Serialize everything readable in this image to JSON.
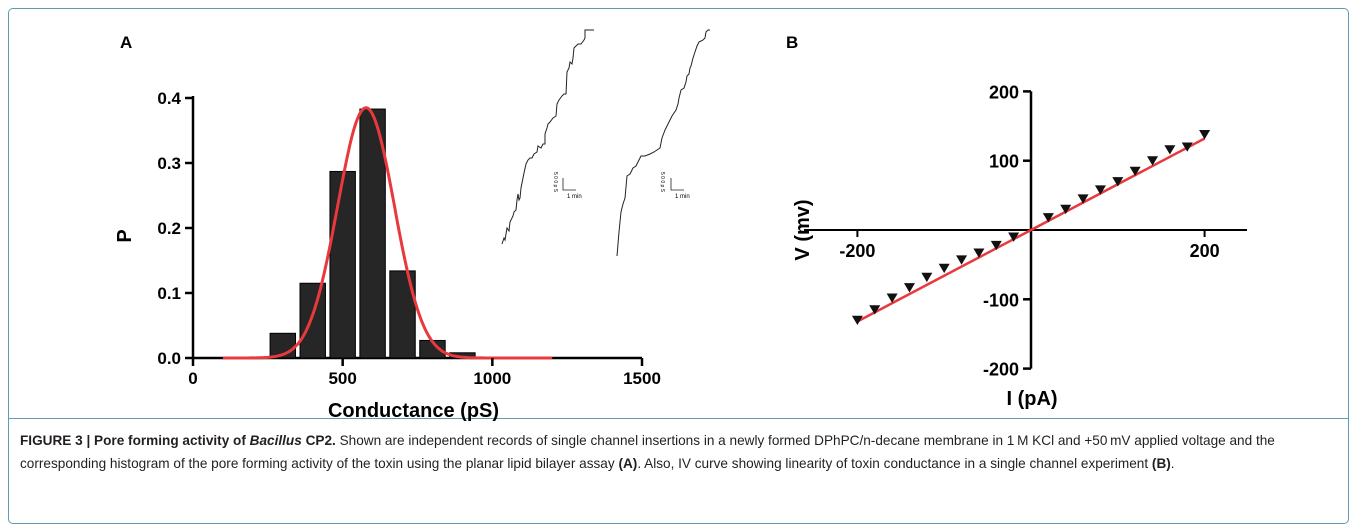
{
  "figure": {
    "caption_label": "FIGURE 3 | Pore forming activity of ",
    "caption_species": "Bacillus",
    "caption_label_end": " CP2.",
    "caption_text": " Shown are independent records of single channel insertions in a newly formed DPhPC/n-decane membrane in 1 M KCl and +50 mV applied voltage and the corresponding histogram of the pore forming activity of the toxin using the planar lipid bilayer assay ",
    "caption_ref_a": "(A)",
    "caption_text2": ". Also, IV curve showing linearity of toxin conductance in a single channel experiment ",
    "caption_ref_b": "(B)",
    "caption_end": "."
  },
  "chart_data": [
    {
      "panel": "A",
      "type": "bar",
      "xlabel": "Conductance (pS)",
      "ylabel": "P",
      "xlim": [
        0,
        1500
      ],
      "ylim": [
        0,
        0.4
      ],
      "xticks": [
        "0",
        "500",
        "1000",
        "1500"
      ],
      "yticks": [
        "0.0",
        "0.1",
        "0.2",
        "0.3",
        "0.4"
      ],
      "categories": [
        300,
        400,
        500,
        600,
        700,
        800,
        900
      ],
      "values": [
        0.038,
        0.115,
        0.287,
        0.383,
        0.134,
        0.027,
        0.008
      ],
      "fit": {
        "type": "gaussian",
        "amplitude": 0.385,
        "mean": 578,
        "sd": 95,
        "range": [
          100,
          1200
        ],
        "color": "#e8393d"
      },
      "inset": {
        "scale_label_1": "1 min",
        "scale_label_2": "1 min",
        "scale_value_1": "5 0 0 p S",
        "scale_value_2": "5 0 0 p S"
      }
    },
    {
      "panel": "B",
      "type": "scatter",
      "xlabel": "I (pA)",
      "ylabel": "V (mv)",
      "xlim": [
        -260,
        260
      ],
      "ylim": [
        -200,
        200
      ],
      "xticks": [
        "-200",
        "200"
      ],
      "yticks": [
        "200",
        "100",
        "-100",
        "-200"
      ],
      "x": [
        -200,
        -180,
        -160,
        -140,
        -120,
        -100,
        -80,
        -60,
        -40,
        -20,
        20,
        40,
        60,
        80,
        100,
        120,
        140,
        160,
        180,
        200
      ],
      "y": [
        -130,
        -115,
        -98,
        -83,
        -68,
        -55,
        -43,
        -33,
        -22,
        -10,
        18,
        30,
        45,
        58,
        70,
        85,
        100,
        116,
        120,
        138
      ],
      "fit": {
        "type": "linear",
        "slope": 0.66,
        "intercept": 0,
        "range": [
          -200,
          200
        ],
        "color": "#e8393d"
      }
    }
  ],
  "panels": {
    "a_label": "A",
    "b_label": "B"
  }
}
